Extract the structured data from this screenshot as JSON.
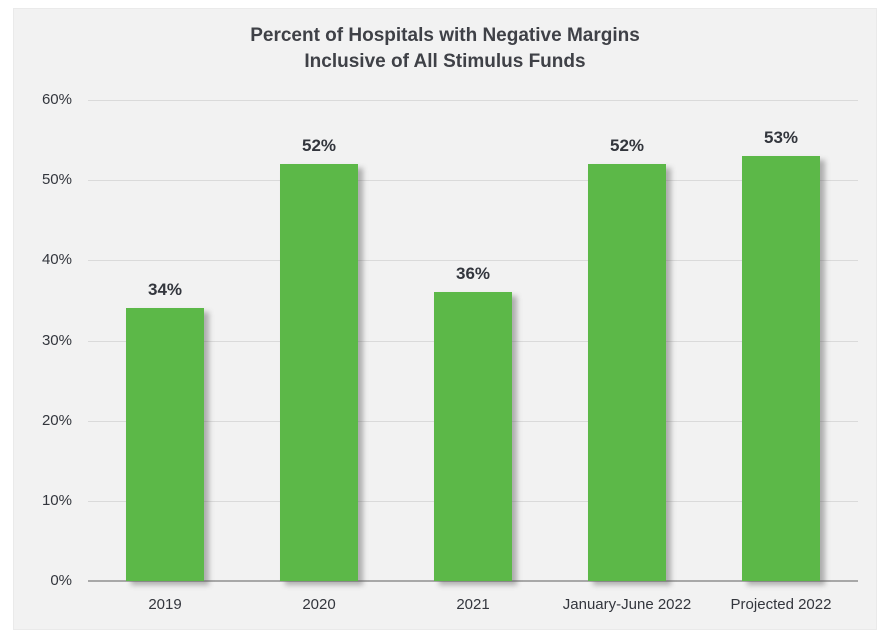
{
  "title": {
    "line1": "Percent of Hospitals with Negative Margins",
    "line2": "Inclusive of All Stimulus Funds"
  },
  "chart_data": {
    "type": "bar",
    "title": "Percent of Hospitals with Negative Margins Inclusive of All Stimulus Funds",
    "categories": [
      "2019",
      "2020",
      "2021",
      "January-June 2022",
      "Projected 2022"
    ],
    "values": [
      34,
      52,
      36,
      52,
      53
    ],
    "data_labels": [
      "34%",
      "52%",
      "36%",
      "52%",
      "53%"
    ],
    "xlabel": "",
    "ylabel": "",
    "ylim": [
      0,
      60
    ],
    "ytick_step": 10,
    "ytick_labels": [
      "0%",
      "10%",
      "20%",
      "30%",
      "40%",
      "50%",
      "60%"
    ],
    "grid": "horizontal",
    "legend": "none",
    "colors": {
      "bar": "#5CB848",
      "plot_background": "#F2F2F2",
      "gridline": "#DADADA",
      "axis_line": "#A8A8A8",
      "title_text": "#3F4147",
      "label_text": "#33363D"
    }
  }
}
